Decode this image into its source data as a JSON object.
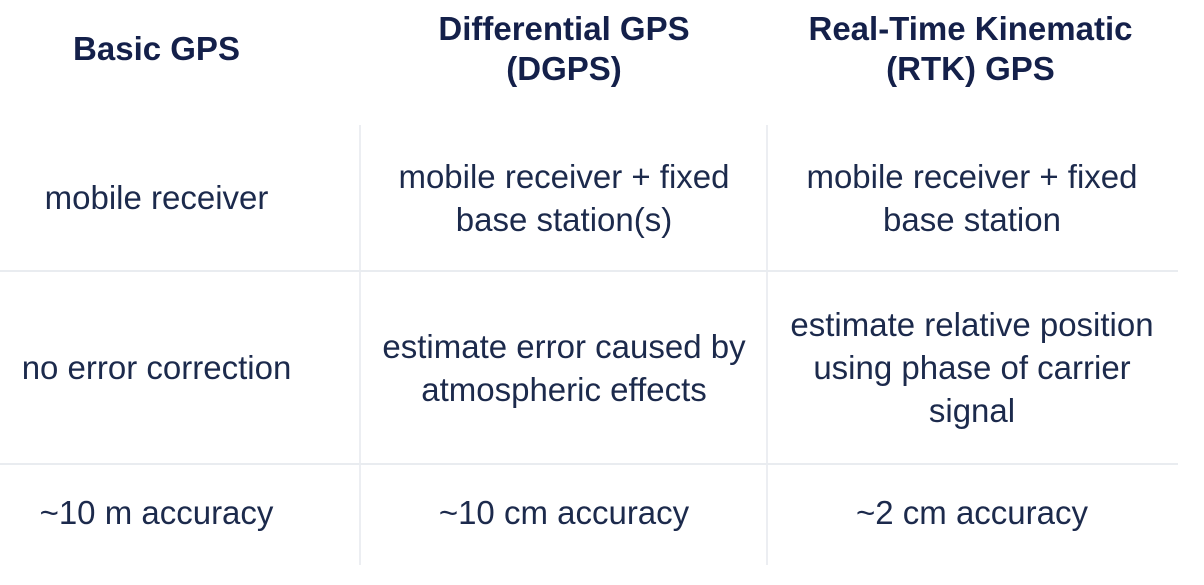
{
  "columns": [
    {
      "header": "Basic GPS",
      "rows": [
        "mobile receiver",
        "no error correction",
        "~10 m accuracy"
      ]
    },
    {
      "header": "Differential GPS (DGPS)",
      "rows": [
        "mobile receiver + fixed base station(s)",
        "estimate error caused by atmospheric effects",
        "~10 cm accuracy"
      ]
    },
    {
      "header": "Real-Time Kinematic (RTK) GPS",
      "rows": [
        "mobile receiver + fixed base station",
        "estimate relative position using phase of carrier signal",
        "~2 cm accuracy"
      ]
    }
  ]
}
